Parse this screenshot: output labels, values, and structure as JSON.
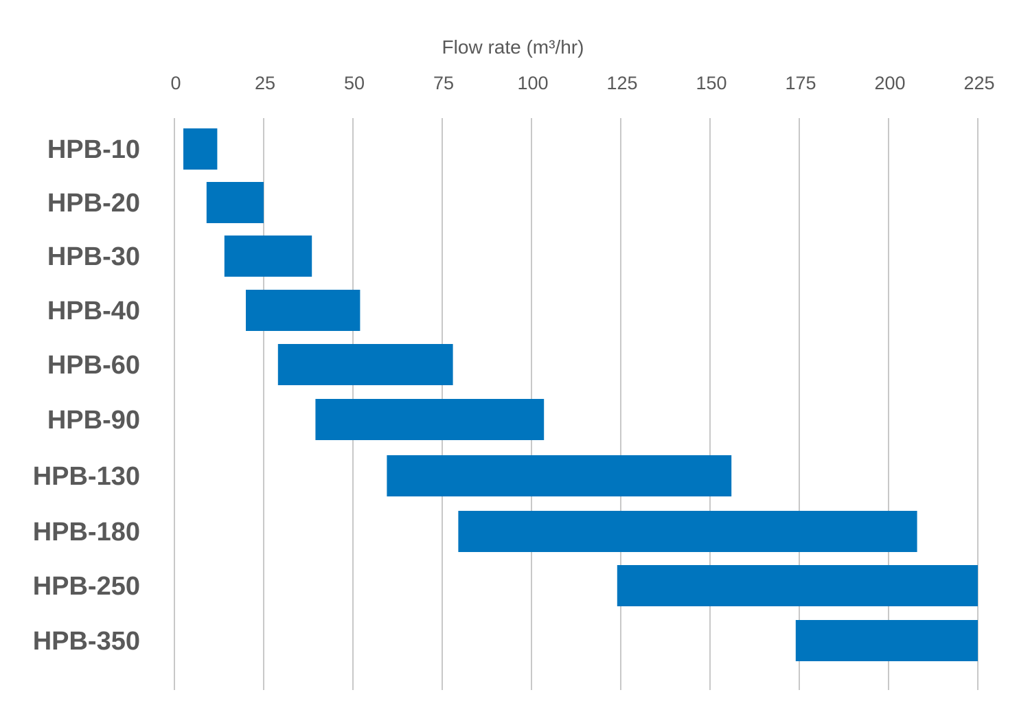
{
  "chart_data": {
    "type": "bar",
    "orientation": "horizontal-range",
    "xlabel": "Flow rate (m³/hr)",
    "xaxis_position": "top",
    "xlim": [
      0,
      225
    ],
    "xticks": [
      "0",
      "25",
      "50",
      "75",
      "100",
      "125",
      "150",
      "175",
      "200",
      "225"
    ],
    "grid": true,
    "legend": "none",
    "bar_color": "#0075BE",
    "categories": [
      "HPB-10",
      "HPB-20",
      "HPB-30",
      "HPB-40",
      "HPB-60",
      "HPB-90",
      "HPB-130",
      "HPB-180",
      "HPB-250",
      "HPB-350"
    ],
    "ranges": [
      [
        2.5,
        12
      ],
      [
        9,
        25
      ],
      [
        14,
        38.5
      ],
      [
        20,
        52
      ],
      [
        29,
        78
      ],
      [
        39.5,
        103.5
      ],
      [
        59.5,
        156
      ],
      [
        79.5,
        208
      ],
      [
        124,
        225
      ],
      [
        174,
        225
      ]
    ]
  }
}
